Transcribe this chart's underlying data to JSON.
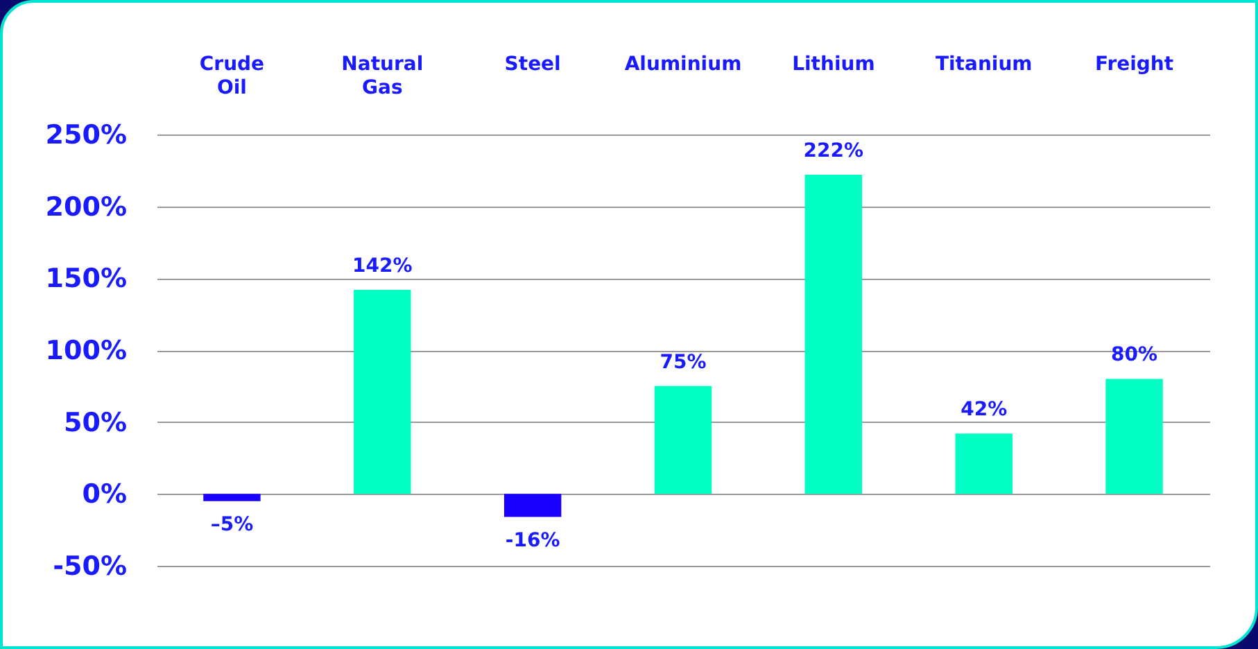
{
  "chart_data": {
    "type": "bar",
    "categories": [
      "Crude Oil",
      "Natural Gas",
      "Steel",
      "Aluminium",
      "Lithium",
      "Titanium",
      "Freight"
    ],
    "values": [
      -5,
      142,
      -16,
      75,
      222,
      42,
      80
    ],
    "colors": [
      "#1a00ff",
      "#00ffc3",
      "#1a00ff",
      "#00ffc3",
      "#00ffc3",
      "#00ffc3",
      "#00ffc3"
    ],
    "value_labels": [
      "–5%",
      "142%",
      "-16%",
      "75%",
      "222%",
      "42%",
      "80%"
    ],
    "ylim": [
      -50,
      250
    ],
    "yticks": [
      {
        "value": -50,
        "label": "-50%"
      },
      {
        "value": 0,
        "label": "0%"
      },
      {
        "value": 50,
        "label": "50%"
      },
      {
        "value": 100,
        "label": "100%"
      },
      {
        "value": 150,
        "label": "150%"
      },
      {
        "value": 200,
        "label": "200%"
      },
      {
        "value": 250,
        "label": "250%"
      }
    ],
    "grid": true
  }
}
